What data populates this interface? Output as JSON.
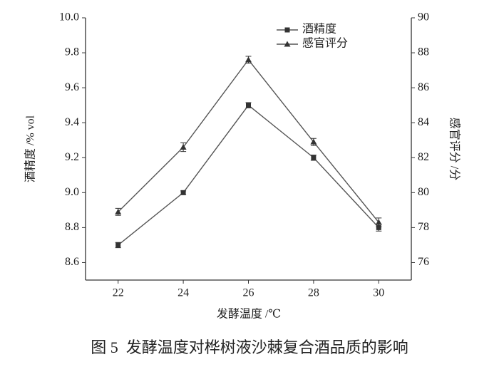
{
  "chart_data": {
    "type": "line",
    "caption": "图 5  发酵温度对桦树液沙棘复合酒品质的影响",
    "xlabel": "发酵温度 /℃",
    "ylabel": "酒精度 /% vol",
    "y2label": "感官评分 /分",
    "x": [
      22,
      24,
      26,
      28,
      30
    ],
    "xlim": [
      21,
      31
    ],
    "xticks": [
      22,
      24,
      26,
      28,
      30
    ],
    "ylim": [
      8.5,
      10.0
    ],
    "yticks": [
      8.6,
      8.8,
      {
        "value": 9.0,
        "label": "9.0"
      },
      9.2,
      9.4,
      9.6,
      9.8,
      {
        "value": 10.0,
        "label": "10.0"
      }
    ],
    "y2lim": [
      75,
      90
    ],
    "y2ticks": [
      76,
      78,
      80,
      82,
      84,
      86,
      88,
      90
    ],
    "series": [
      {
        "name": "酒精度",
        "color": "#555555",
        "marker": "square",
        "values": [
          8.7,
          9.0,
          9.5,
          9.2,
          8.8
        ],
        "errors": [
          0.015,
          0.01,
          0.015,
          0.015,
          0.02
        ]
      },
      {
        "name": "感官评分",
        "color": "#555555",
        "marker": "triangle",
        "axis": "y2",
        "values": [
          78.9,
          82.6,
          87.6,
          82.9,
          78.3
        ],
        "errors": [
          0.2,
          0.25,
          0.2,
          0.2,
          0.25
        ]
      }
    ]
  }
}
